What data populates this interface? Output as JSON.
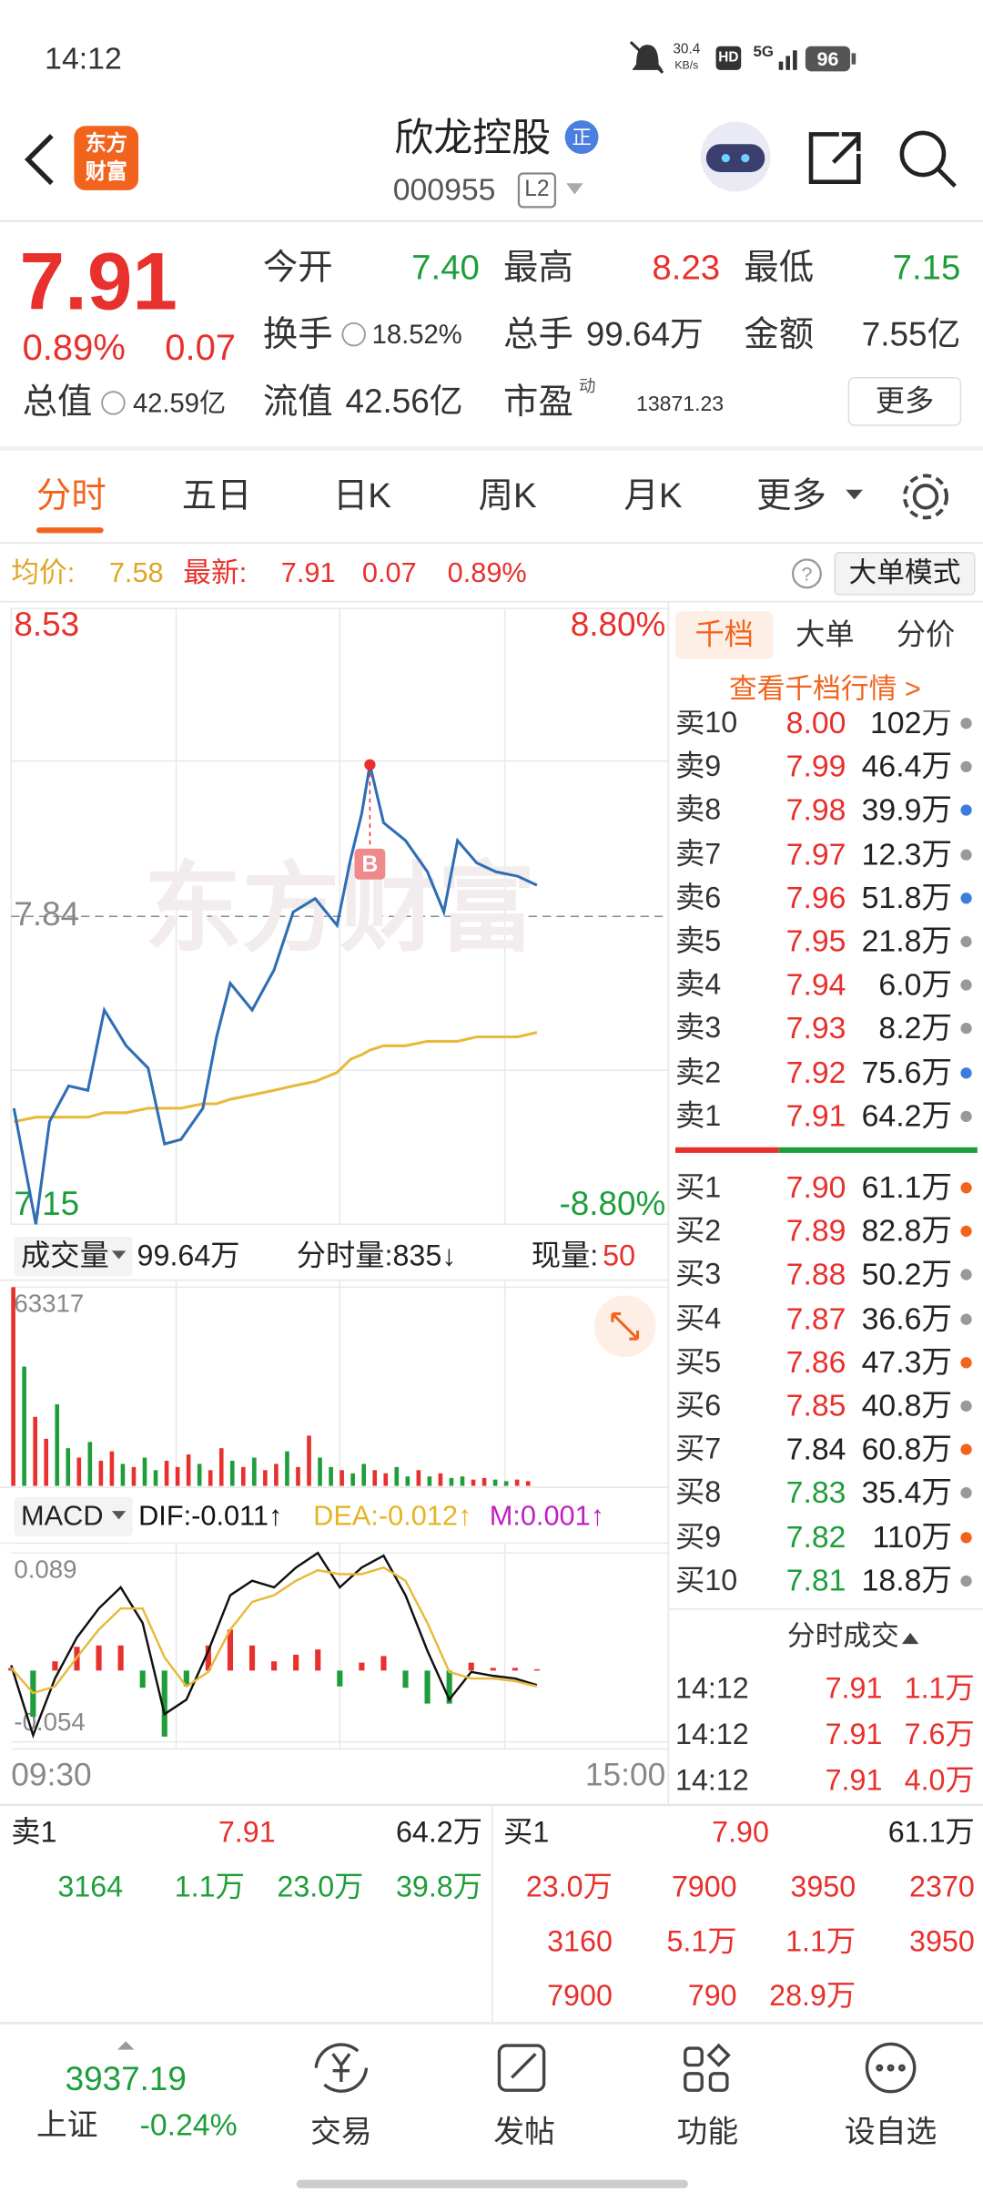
{
  "status_bar": {
    "time": "14:12",
    "speed": "30.4",
    "speed_unit": "KB/s",
    "hd": "HD",
    "network": "5G",
    "battery": "96"
  },
  "header": {
    "logo_line1": "东方",
    "logo_line2": "财富",
    "stock_name": "欣龙控股",
    "badge": "正",
    "stock_code": "000955",
    "level": "L2"
  },
  "quote": {
    "price": "7.91",
    "change_percent": "0.89%",
    "change": "0.07",
    "open_label": "今开",
    "open": "7.40",
    "high_label": "最高",
    "high": "8.23",
    "low_label": "最低",
    "low": "7.15",
    "turnover_label": "换手",
    "turnover": "18.52%",
    "volume_label": "总手",
    "volume": "99.64万",
    "amount_label": "金额",
    "amount": "7.55亿",
    "market_cap_label": "总值",
    "market_cap": "42.59亿",
    "float_cap_label": "流值",
    "float_cap": "42.56亿",
    "pe_label": "市盈",
    "pe_superscript": "动",
    "pe": "13871.23",
    "more": "更多"
  },
  "tabs": [
    "分时",
    "五日",
    "日K",
    "周K",
    "月K",
    "更多"
  ],
  "info_row": {
    "avg_label": "均价:",
    "avg": "7.58",
    "latest_label": "最新:",
    "latest": "7.91",
    "change": "0.07",
    "change_percent": "0.89%",
    "mode_button": "大单模式"
  },
  "chart_data": [
    {
      "type": "line",
      "watermark": "东方财富",
      "annotation": "B",
      "x": [
        1,
        9,
        14,
        21,
        28,
        34,
        42,
        50,
        56,
        62,
        70,
        75,
        80,
        88,
        96,
        103,
        111,
        119,
        124,
        128,
        131,
        136,
        144,
        152,
        158,
        163,
        170,
        177,
        185,
        192
      ],
      "series": [
        {
          "color": "#2f6db5",
          "values": [
            7.41,
            7.15,
            7.38,
            7.46,
            7.45,
            7.63,
            7.55,
            7.5,
            7.33,
            7.34,
            7.41,
            7.57,
            7.69,
            7.63,
            7.72,
            7.85,
            7.88,
            7.82,
            7.97,
            8.07,
            8.18,
            8.05,
            8.01,
            7.94,
            7.85,
            8.01,
            7.96,
            7.94,
            7.93,
            7.91
          ]
        },
        {
          "color": "#e8b93a",
          "values": [
            7.38,
            7.39,
            7.39,
            7.39,
            7.39,
            7.4,
            7.4,
            7.41,
            7.41,
            7.41,
            7.42,
            7.42,
            7.43,
            7.44,
            7.45,
            7.46,
            7.47,
            7.49,
            7.52,
            7.53,
            7.54,
            7.55,
            7.55,
            7.56,
            7.56,
            7.56,
            7.57,
            7.57,
            7.57,
            7.58
          ]
        }
      ],
      "xlim": [
        0,
        240
      ],
      "ylim": [
        7.15,
        8.53
      ],
      "yticks": [
        7.15,
        7.84,
        8.53
      ],
      "y2lim": [
        -8.8,
        8.8
      ],
      "y2ticks": [
        {
          "value": -8.8,
          "label": "-8.80%"
        },
        {
          "value": 8.8,
          "label": "8.80%"
        }
      ]
    },
    {
      "type": "bar",
      "x": [
        0,
        4,
        8,
        12,
        16,
        20,
        24,
        28,
        32,
        36,
        40,
        44,
        48,
        52,
        56,
        60,
        64,
        68,
        72,
        76,
        80,
        84,
        88,
        92,
        96,
        100,
        104,
        108,
        112,
        116,
        120,
        124,
        128,
        132,
        136,
        140,
        144,
        148,
        152,
        156,
        160,
        164,
        168,
        172,
        176,
        180,
        184,
        188
      ],
      "values": [
        63317,
        38000,
        22000,
        15000,
        26000,
        12000,
        9000,
        14000,
        8000,
        11000,
        7000,
        6000,
        9000,
        5000,
        8000,
        6000,
        10000,
        7000,
        5000,
        12000,
        8000,
        6000,
        9000,
        5000,
        7000,
        11000,
        6000,
        16000,
        9000,
        6000,
        5000,
        4000,
        7000,
        5000,
        4000,
        6000,
        3000,
        5000,
        3000,
        4000,
        2500,
        3000,
        2000,
        2500,
        2000,
        1500,
        2000,
        1500
      ],
      "colors": [
        "#e8302c",
        "#1e9e3a",
        "#e8302c",
        "#e8302c",
        "#1e9e3a",
        "#1e9e3a",
        "#e8302c",
        "#1e9e3a",
        "#e8302c",
        "#e8302c",
        "#1e9e3a",
        "#e8302c",
        "#1e9e3a",
        "#1e9e3a",
        "#e8302c",
        "#e8302c",
        "#e8302c",
        "#1e9e3a",
        "#e8302c",
        "#e8302c",
        "#1e9e3a",
        "#e8302c",
        "#1e9e3a",
        "#e8302c",
        "#e8302c",
        "#1e9e3a",
        "#e8302c",
        "#e8302c",
        "#1e9e3a",
        "#1e9e3a",
        "#e8302c",
        "#1e9e3a",
        "#1e9e3a",
        "#e8302c",
        "#e8302c",
        "#1e9e3a",
        "#1e9e3a",
        "#e8302c",
        "#1e9e3a",
        "#e8302c",
        "#1e9e3a",
        "#1e9e3a",
        "#e8302c",
        "#e8302c",
        "#1e9e3a",
        "#1e9e3a",
        "#e8302c",
        "#e8302c"
      ],
      "xlim": [
        0,
        240
      ],
      "ylim": [
        0,
        63317
      ],
      "yticks": [
        63317
      ]
    },
    {
      "type": "macd",
      "x": [
        0,
        8,
        16,
        24,
        32,
        40,
        48,
        56,
        64,
        72,
        80,
        88,
        96,
        104,
        112,
        120,
        128,
        136,
        144,
        152,
        160,
        168,
        176,
        184,
        192
      ],
      "series": [
        {
          "style": "line",
          "color": "#111111",
          "values": [
            0.004,
            -0.049,
            -0.006,
            0.025,
            0.047,
            0.063,
            0.036,
            -0.033,
            -0.022,
            0.015,
            0.057,
            0.068,
            0.063,
            0.078,
            0.089,
            0.063,
            0.078,
            0.087,
            0.057,
            0.015,
            -0.022,
            -0.001,
            -0.004,
            -0.006,
            -0.011
          ]
        },
        {
          "style": "line",
          "color": "#e8b93a",
          "values": [
            0.002,
            -0.017,
            -0.012,
            0.01,
            0.031,
            0.047,
            0.047,
            0.01,
            -0.012,
            -0.001,
            0.031,
            0.052,
            0.057,
            0.068,
            0.076,
            0.073,
            0.073,
            0.078,
            0.068,
            0.036,
            -0.001,
            -0.006,
            -0.006,
            -0.008,
            -0.012
          ]
        },
        {
          "style": "bar",
          "values": [
            0.002,
            -0.035,
            0.007,
            0.018,
            0.019,
            0.019,
            -0.013,
            -0.05,
            -0.012,
            0.019,
            0.031,
            0.019,
            0.007,
            0.012,
            0.016,
            -0.012,
            0.006,
            0.011,
            -0.013,
            -0.025,
            -0.025,
            0.006,
            0.002,
            0.002,
            0.001
          ]
        }
      ],
      "xlim": [
        0,
        240
      ],
      "xticks": [
        {
          "value": 0,
          "label": "09:30"
        },
        {
          "value": 240,
          "label": "15:00"
        }
      ],
      "ylim": [
        -0.054,
        0.089
      ],
      "yticks": [
        -0.054,
        0.089
      ]
    }
  ],
  "volume_row": {
    "label": "成交量",
    "total": "99.64万",
    "minute_volume": "分时量:835↓",
    "current_label": "现量:",
    "current": "50"
  },
  "macd_row": {
    "label": "MACD",
    "dif": "DIF:-0.011↑",
    "dea": "DEA:-0.012↑",
    "m": "M:0.001↑"
  },
  "order_book": {
    "tabs": [
      "千档",
      "大单",
      "分价"
    ],
    "link": "查看千档行情 >",
    "sell": [
      {
        "label": "卖10",
        "price": "8.00",
        "volume": "102万",
        "color": "red",
        "dot": "#999999"
      },
      {
        "label": "卖9",
        "price": "7.99",
        "volume": "46.4万",
        "color": "red",
        "dot": "#999999"
      },
      {
        "label": "卖8",
        "price": "7.98",
        "volume": "39.9万",
        "color": "red",
        "dot": "#3b7ddd"
      },
      {
        "label": "卖7",
        "price": "7.97",
        "volume": "12.3万",
        "color": "red",
        "dot": "#999999"
      },
      {
        "label": "卖6",
        "price": "7.96",
        "volume": "51.8万",
        "color": "red",
        "dot": "#3b7ddd"
      },
      {
        "label": "卖5",
        "price": "7.95",
        "volume": "21.8万",
        "color": "red",
        "dot": "#999999"
      },
      {
        "label": "卖4",
        "price": "7.94",
        "volume": "6.0万",
        "color": "red",
        "dot": "#999999"
      },
      {
        "label": "卖3",
        "price": "7.93",
        "volume": "8.2万",
        "color": "red",
        "dot": "#999999"
      },
      {
        "label": "卖2",
        "price": "7.92",
        "volume": "75.6万",
        "color": "red",
        "dot": "#3b7ddd"
      },
      {
        "label": "卖1",
        "price": "7.91",
        "volume": "64.2万",
        "color": "red",
        "dot": "#999999"
      }
    ],
    "buy": [
      {
        "label": "买1",
        "price": "7.90",
        "volume": "61.1万",
        "color": "red",
        "dot": "#f2641e"
      },
      {
        "label": "买2",
        "price": "7.89",
        "volume": "82.8万",
        "color": "red",
        "dot": "#f2641e"
      },
      {
        "label": "买3",
        "price": "7.88",
        "volume": "50.2万",
        "color": "red",
        "dot": "#999999"
      },
      {
        "label": "买4",
        "price": "7.87",
        "volume": "36.6万",
        "color": "red",
        "dot": "#999999"
      },
      {
        "label": "买5",
        "price": "7.86",
        "volume": "47.3万",
        "color": "red",
        "dot": "#f2641e"
      },
      {
        "label": "买6",
        "price": "7.85",
        "volume": "40.8万",
        "color": "red",
        "dot": "#999999"
      },
      {
        "label": "买7",
        "price": "7.84",
        "volume": "60.8万",
        "color": "black",
        "dot": "#f2641e"
      },
      {
        "label": "买8",
        "price": "7.83",
        "volume": "35.4万",
        "color": "green",
        "dot": "#999999"
      },
      {
        "label": "买9",
        "price": "7.82",
        "volume": "110万",
        "color": "green",
        "dot": "#f2641e"
      },
      {
        "label": "买10",
        "price": "7.81",
        "volume": "18.8万",
        "color": "green",
        "dot": "#999999"
      }
    ]
  },
  "trades": {
    "title": "分时成交",
    "rows": [
      [
        "14:12",
        "7.91",
        "1.1万"
      ],
      [
        "14:12",
        "7.91",
        "7.6万"
      ],
      [
        "14:12",
        "7.91",
        "4.0万"
      ]
    ]
  },
  "bottom": {
    "sell_label": "卖1",
    "sell_price": "7.91",
    "sell_volume": "64.2万",
    "sell_orders": [
      "3164",
      "1.1万",
      "23.0万",
      "39.8万"
    ],
    "buy_label": "买1",
    "buy_price": "7.90",
    "buy_volume": "61.1万",
    "buy_orders": [
      [
        "23.0万",
        "7900",
        "3950",
        "2370"
      ],
      [
        "3160",
        "5.1万",
        "1.1万",
        "3950"
      ],
      [
        "7900",
        "790",
        "28.9万"
      ]
    ]
  },
  "nav": {
    "index_value": "3937.19",
    "index_name": "上证",
    "index_change": "-0.24%",
    "items": [
      "交易",
      "发帖",
      "功能",
      "设自选"
    ]
  }
}
